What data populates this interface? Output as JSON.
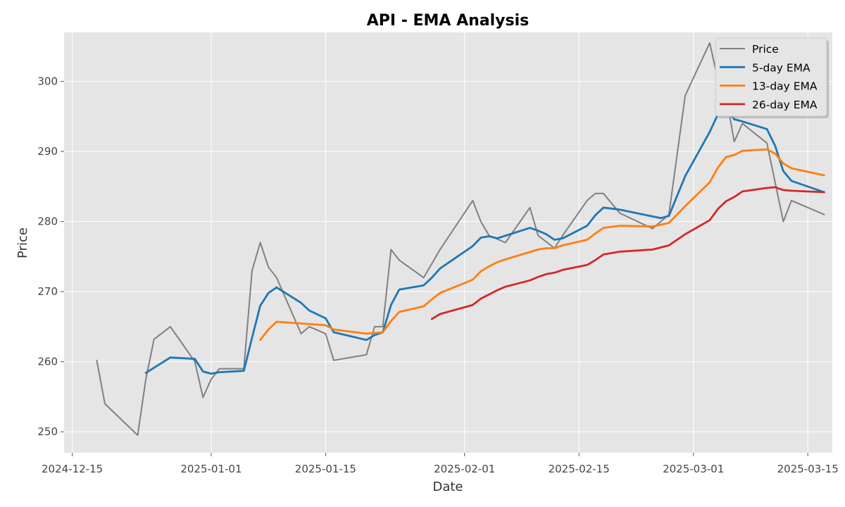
{
  "chart_data": {
    "type": "line",
    "title": "API - EMA Analysis",
    "xlabel": "Date",
    "ylabel": "Price",
    "x_type": "date",
    "xlim": [
      "2024-12-14",
      "2025-03-18"
    ],
    "ylim": [
      247,
      307
    ],
    "grid": true,
    "legend_position": "top-right",
    "x_ticks": [
      "2024-12-15",
      "2025-01-01",
      "2025-01-15",
      "2025-02-01",
      "2025-02-15",
      "2025-03-01",
      "2025-03-15"
    ],
    "y_ticks": [
      250,
      260,
      270,
      280,
      290,
      300
    ],
    "colors": {
      "plot_background": "#e5e5e5",
      "grid": "#ffffff",
      "price": "#808080",
      "ema5": "#1f77b4",
      "ema13": "#ff7f0e",
      "ema26": "#d62728"
    },
    "series": [
      {
        "name": "Price",
        "color": "#808080",
        "points": [
          [
            "2024-12-18",
            260.2
          ],
          [
            "2024-12-19",
            254.0
          ],
          [
            "2024-12-23",
            249.5
          ],
          [
            "2024-12-24",
            257.5
          ],
          [
            "2024-12-25",
            263.2
          ],
          [
            "2024-12-27",
            265.0
          ],
          [
            "2024-12-30",
            260.0
          ],
          [
            "2024-12-31",
            254.9
          ],
          [
            "2025-01-01",
            257.5
          ],
          [
            "2025-01-02",
            259.0
          ],
          [
            "2025-01-05",
            259.0
          ],
          [
            "2025-01-06",
            273.0
          ],
          [
            "2025-01-07",
            277.0
          ],
          [
            "2025-01-08",
            273.5
          ],
          [
            "2025-01-09",
            272.0
          ],
          [
            "2025-01-12",
            264.0
          ],
          [
            "2025-01-13",
            265.0
          ],
          [
            "2025-01-15",
            264.0
          ],
          [
            "2025-01-16",
            260.2
          ],
          [
            "2025-01-20",
            261.0
          ],
          [
            "2025-01-21",
            265.0
          ],
          [
            "2025-01-22",
            265.0
          ],
          [
            "2025-01-23",
            276.0
          ],
          [
            "2025-01-24",
            274.5
          ],
          [
            "2025-01-27",
            272.0
          ],
          [
            "2025-01-29",
            276.0
          ],
          [
            "2025-02-02",
            283.0
          ],
          [
            "2025-02-03",
            280.0
          ],
          [
            "2025-02-04",
            278.0
          ],
          [
            "2025-02-06",
            277.0
          ],
          [
            "2025-02-09",
            282.0
          ],
          [
            "2025-02-10",
            278.0
          ],
          [
            "2025-02-12",
            276.2
          ],
          [
            "2025-02-13",
            278.0
          ],
          [
            "2025-02-16",
            283.0
          ],
          [
            "2025-02-17",
            284.0
          ],
          [
            "2025-02-18",
            284.0
          ],
          [
            "2025-02-20",
            281.2
          ],
          [
            "2025-02-24",
            279.0
          ],
          [
            "2025-02-26",
            281.0
          ],
          [
            "2025-02-28",
            298.0
          ],
          [
            "2025-03-03",
            305.5
          ],
          [
            "2025-03-04",
            300.2
          ],
          [
            "2025-03-05",
            298.0
          ],
          [
            "2025-03-06",
            291.4
          ],
          [
            "2025-03-07",
            294.0
          ],
          [
            "2025-03-10",
            291.2
          ],
          [
            "2025-03-12",
            280.0
          ],
          [
            "2025-03-13",
            283.0
          ],
          [
            "2025-03-17",
            281.0
          ]
        ]
      },
      {
        "name": "5-day EMA",
        "color": "#1f77b4",
        "points": [
          [
            "2024-12-24",
            258.4
          ],
          [
            "2024-12-27",
            260.6
          ],
          [
            "2024-12-30",
            260.4
          ],
          [
            "2024-12-31",
            258.6
          ],
          [
            "2025-01-01",
            258.3
          ],
          [
            "2025-01-02",
            258.5
          ],
          [
            "2025-01-05",
            258.7
          ],
          [
            "2025-01-06",
            263.4
          ],
          [
            "2025-01-07",
            268.0
          ],
          [
            "2025-01-08",
            269.8
          ],
          [
            "2025-01-09",
            270.6
          ],
          [
            "2025-01-12",
            268.4
          ],
          [
            "2025-01-13",
            267.3
          ],
          [
            "2025-01-15",
            266.2
          ],
          [
            "2025-01-16",
            264.2
          ],
          [
            "2025-01-20",
            263.1
          ],
          [
            "2025-01-21",
            263.8
          ],
          [
            "2025-01-22",
            264.2
          ],
          [
            "2025-01-23",
            268.1
          ],
          [
            "2025-01-24",
            270.3
          ],
          [
            "2025-01-27",
            270.9
          ],
          [
            "2025-01-28",
            272.0
          ],
          [
            "2025-01-29",
            273.3
          ],
          [
            "2025-02-02",
            276.5
          ],
          [
            "2025-02-03",
            277.7
          ],
          [
            "2025-02-04",
            277.9
          ],
          [
            "2025-02-05",
            277.6
          ],
          [
            "2025-02-09",
            279.1
          ],
          [
            "2025-02-10",
            278.7
          ],
          [
            "2025-02-11",
            278.2
          ],
          [
            "2025-02-12",
            277.4
          ],
          [
            "2025-02-13",
            277.6
          ],
          [
            "2025-02-16",
            279.4
          ],
          [
            "2025-02-17",
            280.9
          ],
          [
            "2025-02-18",
            282.0
          ],
          [
            "2025-02-20",
            281.7
          ],
          [
            "2025-02-25",
            280.5
          ],
          [
            "2025-02-26",
            280.8
          ],
          [
            "2025-02-28",
            286.5
          ],
          [
            "2025-03-03",
            292.8
          ],
          [
            "2025-03-04",
            295.3
          ],
          [
            "2025-03-05",
            296.2
          ],
          [
            "2025-03-06",
            294.6
          ],
          [
            "2025-03-07",
            294.3
          ],
          [
            "2025-03-10",
            293.2
          ],
          [
            "2025-03-11",
            290.8
          ],
          [
            "2025-03-12",
            287.2
          ],
          [
            "2025-03-13",
            285.8
          ],
          [
            "2025-03-17",
            284.2
          ]
        ]
      },
      {
        "name": "13-day EMA",
        "color": "#ff7f0e",
        "points": [
          [
            "2025-01-07",
            263.1
          ],
          [
            "2025-01-08",
            264.6
          ],
          [
            "2025-01-09",
            265.7
          ],
          [
            "2025-01-15",
            265.2
          ],
          [
            "2025-01-16",
            264.6
          ],
          [
            "2025-01-20",
            264.0
          ],
          [
            "2025-01-22",
            264.2
          ],
          [
            "2025-01-23",
            265.8
          ],
          [
            "2025-01-24",
            267.1
          ],
          [
            "2025-01-27",
            267.9
          ],
          [
            "2025-01-28",
            268.9
          ],
          [
            "2025-01-29",
            269.8
          ],
          [
            "2025-02-02",
            271.7
          ],
          [
            "2025-02-03",
            272.9
          ],
          [
            "2025-02-04",
            273.6
          ],
          [
            "2025-02-05",
            274.2
          ],
          [
            "2025-02-06",
            274.6
          ],
          [
            "2025-02-10",
            276.0
          ],
          [
            "2025-02-11",
            276.2
          ],
          [
            "2025-02-12",
            276.2
          ],
          [
            "2025-02-13",
            276.6
          ],
          [
            "2025-02-16",
            277.4
          ],
          [
            "2025-02-17",
            278.3
          ],
          [
            "2025-02-18",
            279.1
          ],
          [
            "2025-02-20",
            279.4
          ],
          [
            "2025-02-24",
            279.3
          ],
          [
            "2025-02-26",
            279.8
          ],
          [
            "2025-02-28",
            282.2
          ],
          [
            "2025-03-03",
            285.6
          ],
          [
            "2025-03-04",
            287.7
          ],
          [
            "2025-03-05",
            289.2
          ],
          [
            "2025-03-06",
            289.5
          ],
          [
            "2025-03-07",
            290.1
          ],
          [
            "2025-03-10",
            290.3
          ],
          [
            "2025-03-11",
            289.7
          ],
          [
            "2025-03-12",
            288.3
          ],
          [
            "2025-03-13",
            287.6
          ],
          [
            "2025-03-17",
            286.6
          ]
        ]
      },
      {
        "name": "26-day EMA",
        "color": "#d62728",
        "points": [
          [
            "2025-01-28",
            266.1
          ],
          [
            "2025-01-29",
            266.8
          ],
          [
            "2025-02-02",
            268.1
          ],
          [
            "2025-02-03",
            269.0
          ],
          [
            "2025-02-04",
            269.6
          ],
          [
            "2025-02-05",
            270.2
          ],
          [
            "2025-02-06",
            270.7
          ],
          [
            "2025-02-09",
            271.6
          ],
          [
            "2025-02-10",
            272.1
          ],
          [
            "2025-02-11",
            272.5
          ],
          [
            "2025-02-12",
            272.7
          ],
          [
            "2025-02-13",
            273.1
          ],
          [
            "2025-02-16",
            273.8
          ],
          [
            "2025-02-17",
            274.5
          ],
          [
            "2025-02-18",
            275.3
          ],
          [
            "2025-02-20",
            275.7
          ],
          [
            "2025-02-24",
            276.0
          ],
          [
            "2025-02-26",
            276.6
          ],
          [
            "2025-02-28",
            278.2
          ],
          [
            "2025-03-03",
            280.2
          ],
          [
            "2025-03-04",
            281.8
          ],
          [
            "2025-03-05",
            282.9
          ],
          [
            "2025-03-06",
            283.5
          ],
          [
            "2025-03-07",
            284.3
          ],
          [
            "2025-03-10",
            284.8
          ],
          [
            "2025-03-11",
            284.9
          ],
          [
            "2025-03-12",
            284.5
          ],
          [
            "2025-03-13",
            284.4
          ],
          [
            "2025-03-17",
            284.2
          ]
        ]
      }
    ]
  }
}
